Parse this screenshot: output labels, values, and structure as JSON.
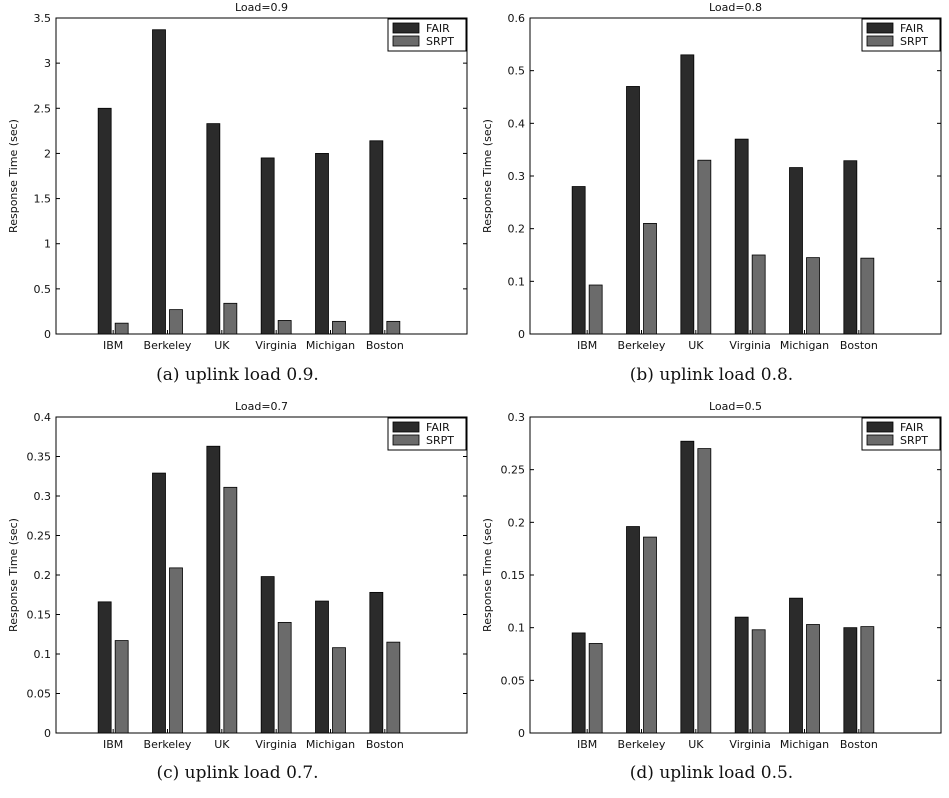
{
  "chart_data": [
    {
      "type": "bar",
      "title": "Load=0.9",
      "caption": "(a) uplink load 0.9.",
      "ylabel": "Response Time (sec)",
      "xlabel": "",
      "categories": [
        "IBM",
        "Berkeley",
        "UK",
        "Virginia",
        "Michigan",
        "Boston"
      ],
      "ylim": [
        0,
        3.5
      ],
      "yticks": [
        0,
        0.5,
        1,
        1.5,
        2,
        2.5,
        3,
        3.5
      ],
      "series": [
        {
          "name": "FAIR",
          "values": [
            2.5,
            3.37,
            2.33,
            1.95,
            2.0,
            2.14
          ]
        },
        {
          "name": "SRPT",
          "values": [
            0.12,
            0.27,
            0.34,
            0.15,
            0.14,
            0.14
          ]
        }
      ],
      "legend": "top-right",
      "grid": false
    },
    {
      "type": "bar",
      "title": "Load=0.8",
      "caption": "(b) uplink load 0.8.",
      "ylabel": "Response Time (sec)",
      "xlabel": "",
      "categories": [
        "IBM",
        "Berkeley",
        "UK",
        "Virginia",
        "Michigan",
        "Boston"
      ],
      "ylim": [
        0,
        0.6
      ],
      "yticks": [
        0,
        0.1,
        0.2,
        0.3,
        0.4,
        0.5,
        0.6
      ],
      "series": [
        {
          "name": "FAIR",
          "values": [
            0.28,
            0.47,
            0.53,
            0.37,
            0.316,
            0.329
          ]
        },
        {
          "name": "SRPT",
          "values": [
            0.093,
            0.21,
            0.33,
            0.15,
            0.145,
            0.144
          ]
        }
      ],
      "legend": "top-right",
      "grid": false
    },
    {
      "type": "bar",
      "title": "Load=0.7",
      "caption": "(c) uplink load 0.7.",
      "ylabel": "Response Time (sec)",
      "xlabel": "",
      "categories": [
        "IBM",
        "Berkeley",
        "UK",
        "Virginia",
        "Michigan",
        "Boston"
      ],
      "ylim": [
        0,
        0.4
      ],
      "yticks": [
        0,
        0.05,
        0.1,
        0.15,
        0.2,
        0.25,
        0.3,
        0.35,
        0.4
      ],
      "series": [
        {
          "name": "FAIR",
          "values": [
            0.166,
            0.329,
            0.363,
            0.198,
            0.167,
            0.178
          ]
        },
        {
          "name": "SRPT",
          "values": [
            0.117,
            0.209,
            0.311,
            0.14,
            0.108,
            0.115
          ]
        }
      ],
      "legend": "top-right",
      "grid": false
    },
    {
      "type": "bar",
      "title": "Load=0.5",
      "caption": "(d) uplink load 0.5.",
      "ylabel": "Response Time (sec)",
      "xlabel": "",
      "categories": [
        "IBM",
        "Berkeley",
        "UK",
        "Virginia",
        "Michigan",
        "Boston"
      ],
      "ylim": [
        0,
        0.3
      ],
      "yticks": [
        0,
        0.05,
        0.1,
        0.15,
        0.2,
        0.25,
        0.3
      ],
      "series": [
        {
          "name": "FAIR",
          "values": [
            0.095,
            0.196,
            0.277,
            0.11,
            0.128,
            0.1
          ]
        },
        {
          "name": "SRPT",
          "values": [
            0.085,
            0.186,
            0.27,
            0.098,
            0.103,
            0.101
          ]
        }
      ],
      "legend": "top-right",
      "grid": false
    }
  ],
  "colors": {
    "FAIR": "#2b2b2b",
    "SRPT": "#6b6b6b",
    "axis": "#000000"
  }
}
